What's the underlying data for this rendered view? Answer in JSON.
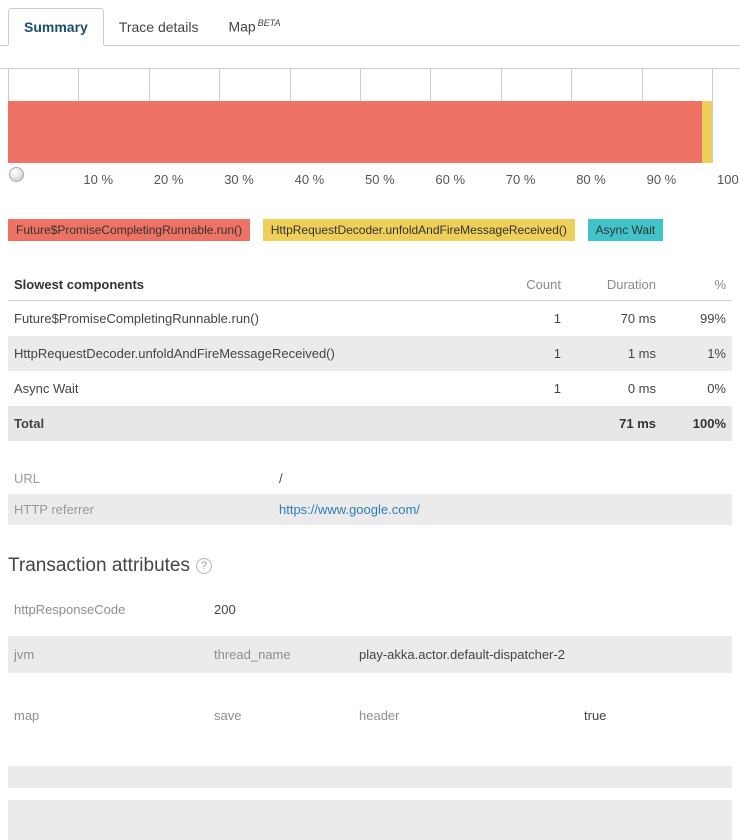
{
  "tabs": [
    {
      "label": "Summary"
    },
    {
      "label": "Trace details"
    },
    {
      "label": "Map",
      "badge": "BETA"
    }
  ],
  "chart_data": {
    "type": "bar",
    "orientation": "horizontal_stacked",
    "xlim": [
      0,
      100
    ],
    "x_tick_labels": [
      "10 %",
      "20 %",
      "30 %",
      "40 %",
      "50 %",
      "60 %",
      "70 %",
      "80 %",
      "90 %",
      "100 %"
    ],
    "grid": true,
    "legend_position": "below",
    "series": [
      {
        "name": "Future$PromiseCompletingRunnable.run()",
        "duration_ms": 70,
        "percent": 98.6,
        "color": "#ef7365"
      },
      {
        "name": "HttpRequestDecoder.unfoldAndFireMessageReceived()",
        "duration_ms": 1,
        "percent": 1.4,
        "color": "#eecf5a"
      },
      {
        "name": "Async Wait",
        "duration_ms": 0,
        "percent": 0,
        "color": "#40c4c9"
      }
    ]
  },
  "slowest_components": {
    "title": "Slowest components",
    "columns": {
      "count": "Count",
      "duration": "Duration",
      "percent": "%"
    },
    "rows": [
      {
        "name": "Future$PromiseCompletingRunnable.run()",
        "count": "1",
        "duration": "70 ms",
        "percent": "99%"
      },
      {
        "name": "HttpRequestDecoder.unfoldAndFireMessageReceived()",
        "count": "1",
        "duration": "1 ms",
        "percent": "1%"
      },
      {
        "name": "Async Wait",
        "count": "1",
        "duration": "0 ms",
        "percent": "0%"
      }
    ],
    "total_row": {
      "name": "Total",
      "count": "",
      "duration": "71 ms",
      "percent": "100%"
    }
  },
  "request_details": {
    "url_label": "URL",
    "url_value": "/",
    "referrer_label": "HTTP referrer",
    "referrer_value": "https://www.google.com/"
  },
  "transaction_attributes": {
    "title": "Transaction attributes",
    "help": "?",
    "rows": [
      {
        "cells": [
          "httpResponseCode",
          "200"
        ]
      },
      {
        "cells": [
          "jvm",
          "thread_name",
          "play-akka.actor.default-dispatcher-2"
        ]
      },
      {
        "cells": [
          "map",
          "save",
          "header",
          "true"
        ]
      }
    ]
  },
  "colors": {
    "segment_1": "#ef7365",
    "segment_2": "#eecf5a",
    "segment_3": "#40c4c9",
    "row_alt_bg": "#ebebeb",
    "link": "#2d7eb5",
    "active_tab_text": "#1d4e71"
  }
}
